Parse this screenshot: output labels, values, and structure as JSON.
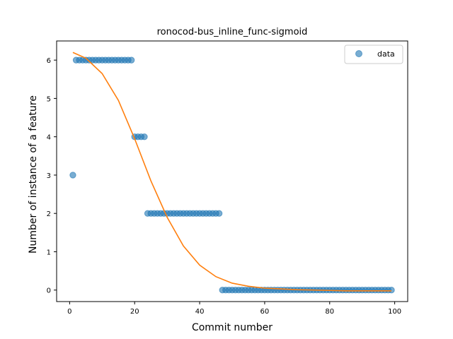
{
  "chart_data": {
    "type": "scatter",
    "title": "ronocod-bus_inline_func-sigmoid",
    "xlabel": "Commit number",
    "ylabel": "Number of instance of a feature",
    "xlim": [
      -4,
      104
    ],
    "ylim": [
      -0.3,
      6.5
    ],
    "xticks": [
      0,
      20,
      40,
      60,
      80,
      100
    ],
    "yticks": [
      0,
      1,
      2,
      3,
      4,
      5,
      6
    ],
    "grid": false,
    "legend_position": "top-right",
    "series": [
      {
        "name": "data",
        "kind": "scatter",
        "color": "#1f77b4",
        "x": [
          1,
          2,
          3,
          4,
          5,
          6,
          7,
          8,
          9,
          10,
          11,
          12,
          13,
          14,
          15,
          16,
          17,
          18,
          19,
          20,
          21,
          22,
          23,
          24,
          25,
          26,
          27,
          28,
          29,
          30,
          31,
          32,
          33,
          34,
          35,
          36,
          37,
          38,
          39,
          40,
          41,
          42,
          43,
          44,
          45,
          46,
          47,
          48,
          49,
          50,
          51,
          52,
          53,
          54,
          55,
          56,
          57,
          58,
          59,
          60,
          61,
          62,
          63,
          64,
          65,
          66,
          67,
          68,
          69,
          70,
          71,
          72,
          73,
          74,
          75,
          76,
          77,
          78,
          79,
          80,
          81,
          82,
          83,
          84,
          85,
          86,
          87,
          88,
          89,
          90,
          91,
          92,
          93,
          94,
          95,
          96,
          97,
          98,
          99
        ],
        "y": [
          3,
          6,
          6,
          6,
          6,
          6,
          6,
          6,
          6,
          6,
          6,
          6,
          6,
          6,
          6,
          6,
          6,
          6,
          6,
          4,
          4,
          4,
          4,
          2,
          2,
          2,
          2,
          2,
          2,
          2,
          2,
          2,
          2,
          2,
          2,
          2,
          2,
          2,
          2,
          2,
          2,
          2,
          2,
          2,
          2,
          2,
          0,
          0,
          0,
          0,
          0,
          0,
          0,
          0,
          0,
          0,
          0,
          0,
          0,
          0,
          0,
          0,
          0,
          0,
          0,
          0,
          0,
          0,
          0,
          0,
          0,
          0,
          0,
          0,
          0,
          0,
          0,
          0,
          0,
          0,
          0,
          0,
          0,
          0,
          0,
          0,
          0,
          0,
          0,
          0,
          0,
          0,
          0,
          0,
          0,
          0,
          0,
          0,
          0
        ]
      },
      {
        "kind": "line",
        "color": "#ff7f0e",
        "x": [
          1,
          5,
          10,
          15,
          20,
          25,
          30,
          35,
          40,
          45,
          50,
          55,
          60,
          65,
          70,
          75,
          80,
          85,
          90,
          95,
          99
        ],
        "y": [
          6.2,
          6.05,
          5.65,
          4.95,
          3.95,
          2.85,
          1.9,
          1.15,
          0.65,
          0.35,
          0.18,
          0.1,
          0.05,
          0.03,
          0.01,
          0.0,
          -0.01,
          -0.02,
          -0.02,
          -0.02,
          -0.02
        ]
      }
    ]
  }
}
